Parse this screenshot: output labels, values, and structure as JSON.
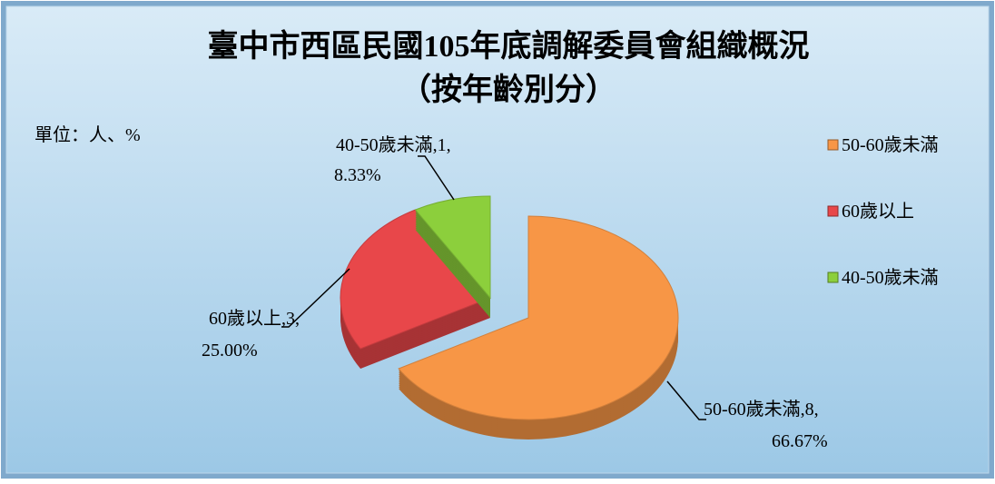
{
  "chart_data": {
    "type": "pie",
    "title": "臺中市西區民國105年底調解委員會組織概況",
    "subtitle": "（按年齡別分）",
    "unit_note": "單位：人、%",
    "categories": [
      "50-60歲未滿",
      "60歲以上",
      "40-50歲未滿"
    ],
    "values": [
      8,
      3,
      1
    ],
    "percents": [
      66.67,
      25.0,
      8.33
    ],
    "percent_labels": [
      "66.67%",
      "25.00%",
      "8.33%"
    ],
    "label_separator": ",",
    "colors": [
      "#f79646",
      "#e8474a",
      "#8ccf3c"
    ],
    "legend": "right"
  }
}
